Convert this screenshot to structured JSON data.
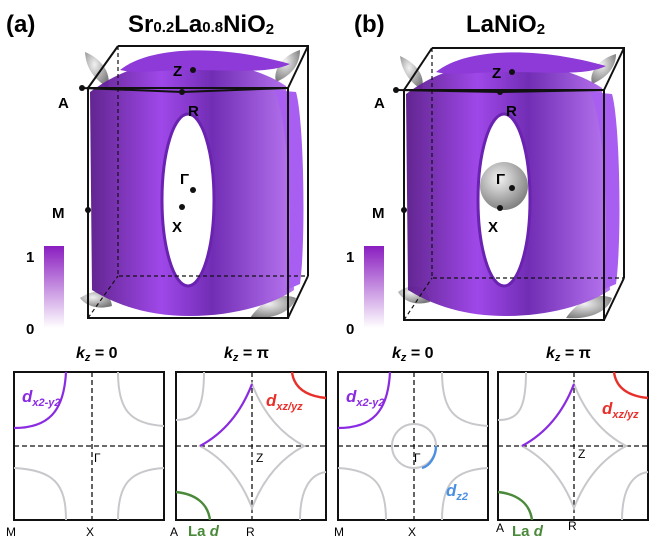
{
  "panel_a": {
    "label": "(a)",
    "title_parts": [
      "Sr",
      "0.2",
      "La",
      "0.8",
      "NiO",
      "2"
    ],
    "points": {
      "Z": "Z",
      "A": "A",
      "R": "R",
      "Gamma": "Γ",
      "M": "M",
      "X": "X"
    },
    "scale": {
      "max": "1",
      "min": "0"
    }
  },
  "panel_b": {
    "label": "(b)",
    "title_parts": [
      "LaNiO",
      "2"
    ],
    "points": {
      "Z": "Z",
      "A": "A",
      "R": "R",
      "Gamma": "Γ",
      "M": "M",
      "X": "X"
    },
    "scale": {
      "max": "1",
      "min": "0"
    }
  },
  "kz": {
    "var": "k",
    "sub": "z",
    "eq0": " = 0",
    "eqpi": " = π"
  },
  "cuts": {
    "a0": {
      "orbital": {
        "d": "d",
        "sub": "x2-y2"
      },
      "gamma": "Γ",
      "m": "M",
      "x": "X"
    },
    "api": {
      "orbital": {
        "d": "d",
        "sub": "xz/yz"
      },
      "z": "Z",
      "a": "A",
      "r": "R",
      "la": "La ",
      "la_d": "d"
    },
    "b0": {
      "orbital": {
        "d": "d",
        "sub": "x2-y2"
      },
      "orbital2": {
        "d": "d",
        "sub": "z2"
      },
      "gamma": "Γ",
      "m": "M",
      "x": "X"
    },
    "bpi": {
      "orbital": {
        "d": "d",
        "sub": "xz/yz"
      },
      "z": "Z",
      "a": "A",
      "r": "R",
      "la": "La ",
      "la_d": "d"
    }
  },
  "colors": {
    "purple": "#8a2be2",
    "red": "#e8302a",
    "green": "#4a8a3a",
    "blue": "#4a90e2",
    "grey": "#c8c8cc"
  }
}
